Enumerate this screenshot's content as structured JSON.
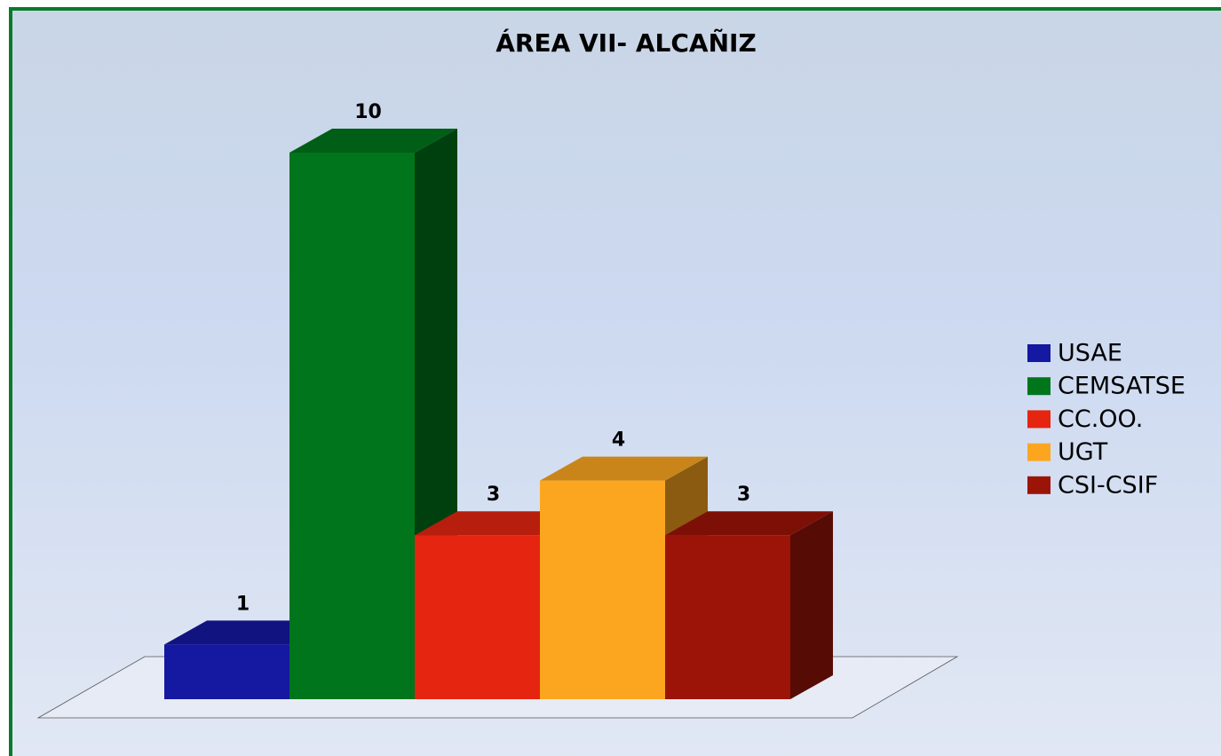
{
  "chart_data": {
    "type": "bar3d",
    "title": "ÁREA VII- ALCAÑIZ",
    "categories": [
      "USAE",
      "CEMSATSE",
      "CC.OO.",
      "UGT",
      "CSI-CSIF"
    ],
    "values": [
      1,
      10,
      3,
      4,
      3
    ],
    "colors": [
      "#1518a0",
      "#00751c",
      "#e52510",
      "#fca620",
      "#9c1408"
    ],
    "legend": "right"
  }
}
